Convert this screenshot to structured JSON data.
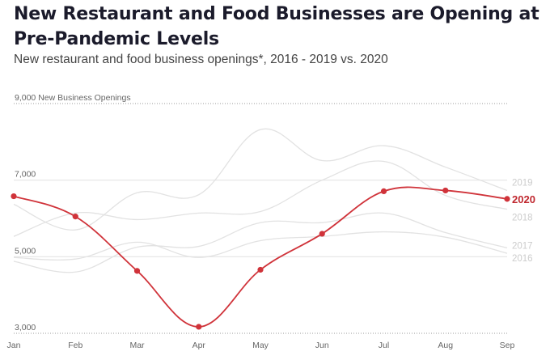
{
  "header": {
    "title": "New Restaurant and Food Businesses are Opening at Pre-Pandemic Levels",
    "subtitle": "New restaurant and food business openings*, 2016 - 2019 vs. 2020"
  },
  "chart_data": {
    "type": "line",
    "title": "New Restaurant and Food Businesses are Opening at Pre-Pandemic Levels",
    "subtitle": "New restaurant and food business openings*, 2016 - 2019 vs. 2020",
    "xlabel": "",
    "ylabel": "New Business Openings",
    "x": [
      "Jan",
      "Feb",
      "Mar",
      "Apr",
      "May",
      "Jun",
      "Jul",
      "Aug",
      "Sep"
    ],
    "ylim": [
      3000,
      9000
    ],
    "yticks": [
      {
        "value": 9000,
        "label": "9,000 New Business Openings",
        "style": "dotted"
      },
      {
        "value": 7000,
        "label": "7,000",
        "style": "solid"
      },
      {
        "value": 5000,
        "label": "5,000",
        "style": "solid"
      },
      {
        "value": 3000,
        "label": "3,000",
        "style": "dotted"
      }
    ],
    "grid": true,
    "legend": "inline-right",
    "colors": {
      "highlight": "#d0333a",
      "highlight_label": "#c0282f",
      "muted": "#e2e2e2",
      "muted_label": "#cccccc"
    },
    "series": [
      {
        "name": "2016",
        "highlight": false,
        "values": [
          4980,
          4940,
          5380,
          4980,
          5420,
          5530,
          5650,
          5510,
          5090
        ]
      },
      {
        "name": "2017",
        "highlight": false,
        "values": [
          4880,
          4600,
          5250,
          5270,
          5890,
          5890,
          6140,
          5630,
          5230
        ]
      },
      {
        "name": "2018",
        "highlight": false,
        "values": [
          5530,
          6140,
          5970,
          6140,
          6180,
          7000,
          7490,
          6600,
          6240
        ]
      },
      {
        "name": "2019",
        "highlight": false,
        "values": [
          6370,
          5700,
          6670,
          6620,
          8320,
          7510,
          7900,
          7340,
          6730
        ]
      },
      {
        "name": "2020",
        "highlight": true,
        "values": [
          6580,
          6050,
          4630,
          3170,
          4660,
          5600,
          6710,
          6730,
          6510
        ]
      }
    ]
  }
}
